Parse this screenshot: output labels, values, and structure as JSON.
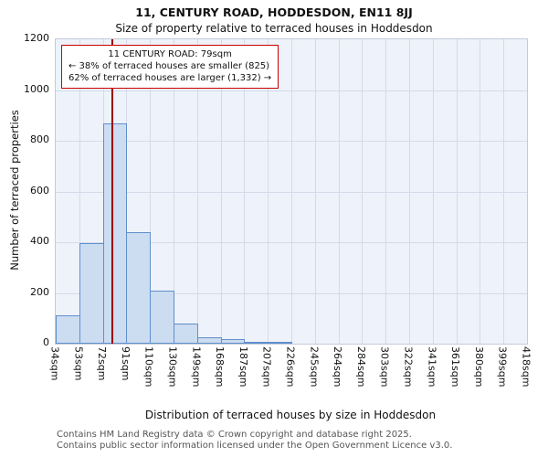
{
  "chart_data": {
    "type": "bar",
    "title": "11, CENTURY ROAD, HODDESDON, EN11 8JJ",
    "subtitle": "Size of property relative to terraced houses in Hoddesdon",
    "xlabel": "Distribution of terraced houses by size in Hoddesdon",
    "ylabel": "Number of terraced properties",
    "categories": [
      "34sqm",
      "53sqm",
      "72sqm",
      "91sqm",
      "110sqm",
      "130sqm",
      "149sqm",
      "168sqm",
      "187sqm",
      "207sqm",
      "226sqm",
      "245sqm",
      "264sqm",
      "284sqm",
      "303sqm",
      "322sqm",
      "341sqm",
      "361sqm",
      "380sqm",
      "399sqm",
      "418sqm"
    ],
    "bin_edges": [
      34,
      53,
      72,
      91,
      110,
      130,
      149,
      168,
      187,
      207,
      226,
      245,
      264,
      284,
      303,
      322,
      341,
      361,
      380,
      399,
      418
    ],
    "values": [
      110,
      395,
      870,
      440,
      210,
      80,
      25,
      18,
      8,
      5,
      0,
      0,
      0,
      0,
      0,
      0,
      0,
      0,
      0,
      0
    ],
    "ylim": [
      0,
      1200
    ],
    "ytick_step": 200,
    "grid": true,
    "legend_position": "none",
    "bar_fill": "#ccdcf1",
    "bar_border": "#6090cc",
    "marker": {
      "value": 79,
      "color": "#990000"
    },
    "annotation": {
      "line1": "11 CENTURY ROAD: 79sqm",
      "line2": "← 38% of terraced houses are smaller (825)",
      "line3": "62% of terraced houses are larger (1,332) →",
      "border_color": "#cc0000"
    }
  },
  "footer": {
    "line1": "Contains HM Land Registry data © Crown copyright and database right 2025.",
    "line2": "Contains public sector information licensed under the Open Government Licence v3.0."
  }
}
